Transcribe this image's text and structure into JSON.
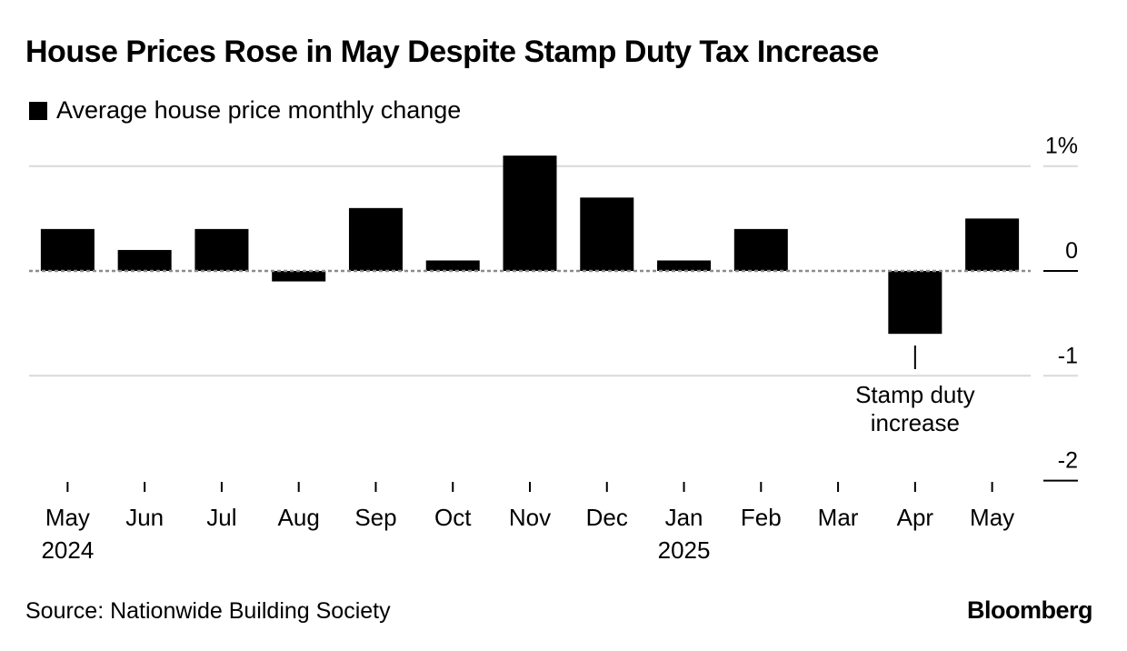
{
  "header": {
    "title": "House Prices Rose in May Despite Stamp Duty Tax Increase",
    "legend_label": "Average house price monthly change"
  },
  "footer": {
    "source": "Source: Nationwide Building Society",
    "brand": "Bloomberg"
  },
  "chart_data": {
    "type": "bar",
    "title": "House Prices Rose in May Despite Stamp Duty Tax Increase",
    "xlabel": "",
    "ylabel": "",
    "categories": [
      "May",
      "Jun",
      "Jul",
      "Aug",
      "Sep",
      "Oct",
      "Nov",
      "Dec",
      "Jan",
      "Feb",
      "Mar",
      "Apr",
      "May"
    ],
    "year_labels": {
      "0": "2024",
      "8": "2025"
    },
    "series": [
      {
        "name": "Average house price monthly change",
        "values": [
          0.4,
          0.2,
          0.4,
          -0.1,
          0.6,
          0.1,
          1.1,
          0.7,
          0.1,
          0.4,
          0.0,
          -0.6,
          0.5
        ]
      }
    ],
    "ylim": [
      -2,
      1
    ],
    "yticks": [
      1,
      0,
      -1,
      -2
    ],
    "ytick_labels": [
      "1%",
      "0",
      "-1",
      "-2"
    ],
    "grid": true,
    "legend_position": "top-left",
    "annotations": [
      {
        "category_index": 11,
        "text_lines": [
          "Stamp duty",
          "increase"
        ]
      }
    ],
    "colors": {
      "bar": "#000000",
      "grid": "#d9d9d9",
      "zero_line": "#8c8c8c"
    }
  }
}
